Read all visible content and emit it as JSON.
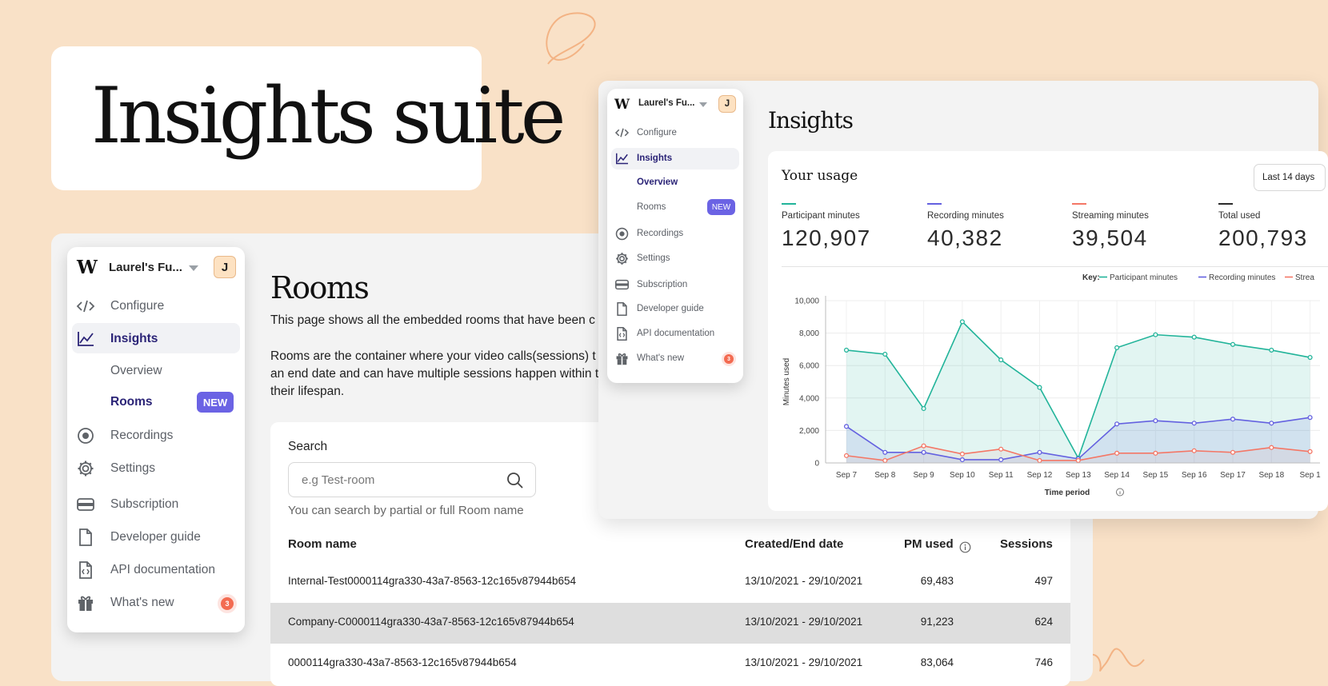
{
  "hero": {
    "title": "Insights suite"
  },
  "sidebar": {
    "workspace_name": "Laurel's Fu...",
    "avatar_initial": "J",
    "items": [
      {
        "label": "Configure",
        "icon": "code-icon"
      },
      {
        "label": "Insights",
        "icon": "chart-line-icon"
      },
      {
        "label": "Overview"
      },
      {
        "label": "Rooms",
        "badge": "NEW"
      },
      {
        "label": "Recordings",
        "icon": "record-icon"
      },
      {
        "label": "Settings",
        "icon": "gear-icon"
      },
      {
        "label": "Subscription",
        "icon": "card-icon"
      },
      {
        "label": "Developer guide",
        "icon": "document-icon"
      },
      {
        "label": "API documentation",
        "icon": "code-document-icon"
      },
      {
        "label": "What's new",
        "icon": "gift-icon",
        "badge": "3"
      }
    ]
  },
  "rooms_page": {
    "title": "Rooms",
    "description_lines": [
      "This page shows all the embedded rooms that have been c",
      "",
      "Rooms are the container where your video calls(sessions) t",
      "an end date and can have multiple sessions happen within t",
      "their lifespan."
    ],
    "search": {
      "label": "Search",
      "placeholder": "e.g Test-room",
      "hint": "You can search by partial or full Room name"
    },
    "table": {
      "headers": [
        "Room name",
        "Created/End date",
        "PM used",
        "Sessions"
      ],
      "rows": [
        {
          "name": "Internal-Test0000114gra330-43a7-8563-12c165v87944b654",
          "dates": "13/10/2021 - 29/10/2021",
          "pm": "69,483",
          "sessions": "497"
        },
        {
          "name": "Company-C0000114gra330-43a7-8563-12c165v87944b654",
          "dates": "13/10/2021 - 29/10/2021",
          "pm": "91,223",
          "sessions": "624"
        },
        {
          "name": "0000114gra330-43a7-8563-12c165v87944b654",
          "dates": "13/10/2021 - 29/10/2021",
          "pm": "83,064",
          "sessions": "746"
        }
      ]
    }
  },
  "insights_page": {
    "title": "Insights",
    "card_title": "Your usage",
    "period": "Last 14 days",
    "stats": [
      {
        "label": "Participant minutes",
        "value": "120,907",
        "color": "#22b49a"
      },
      {
        "label": "Recording minutes",
        "value": "40,382",
        "color": "#6461e0"
      },
      {
        "label": "Streaming minutes",
        "value": "39,504",
        "color": "#f47766"
      },
      {
        "label": "Total used",
        "value": "200,793",
        "color": "#2b2b2b"
      }
    ]
  },
  "colors": {
    "background": "#f9e1c7",
    "accent": "#6b63e4",
    "active_nav": "#2b2477",
    "participant": "#22b49a",
    "recording": "#6461e0",
    "streaming": "#f47766"
  },
  "chart_data": {
    "type": "area",
    "key_label": "Key:",
    "xlabel": "Time period",
    "ylabel": "Minutes used",
    "ylim": [
      0,
      10000
    ],
    "yticks": [
      "0",
      "2,000",
      "4,000",
      "6,000",
      "8,000",
      "10,000"
    ],
    "categories": [
      "Sep 7",
      "Sep 8",
      "Sep 9",
      "Sep 10",
      "Sep 11",
      "Sep 12",
      "Sep 13",
      "Sep 14",
      "Sep 15",
      "Sep 16",
      "Sep 17",
      "Sep 18",
      "Sep 1"
    ],
    "legend": [
      "Participant minutes",
      "Recording minutes",
      "Strea"
    ],
    "series": [
      {
        "name": "Participant minutes",
        "color": "#22b49a",
        "values": [
          6950,
          6700,
          3350,
          8700,
          6350,
          4650,
          300,
          7100,
          7900,
          7750,
          7300,
          6950,
          6500
        ]
      },
      {
        "name": "Recording minutes",
        "color": "#6461e0",
        "values": [
          2250,
          650,
          650,
          200,
          200,
          650,
          250,
          2400,
          2600,
          2450,
          2700,
          2450,
          2800
        ]
      },
      {
        "name": "Streaming minutes",
        "color": "#f47766",
        "values": [
          450,
          150,
          1050,
          550,
          850,
          150,
          150,
          600,
          600,
          750,
          650,
          950,
          700
        ]
      }
    ]
  }
}
